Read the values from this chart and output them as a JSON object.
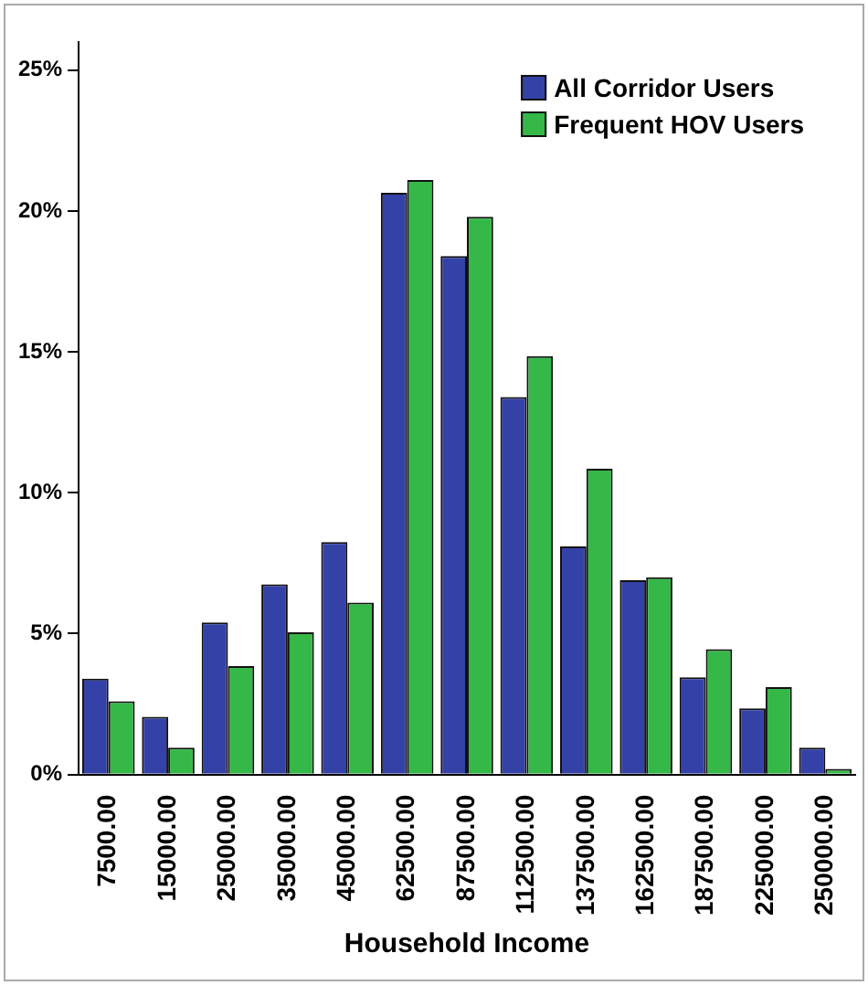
{
  "chart_data": {
    "type": "bar",
    "xlabel": "Household Income",
    "categories": [
      "7500.00",
      "15000.00",
      "25000.00",
      "35000.00",
      "45000.00",
      "62500.00",
      "87500.00",
      "112500.00",
      "137500.00",
      "162500.00",
      "187500.00",
      "225000.00",
      "250000.00"
    ],
    "series": [
      {
        "name": "All Corridor Users",
        "color": "#3442a8",
        "values": [
          3.4,
          2.05,
          5.4,
          6.75,
          8.25,
          20.65,
          18.4,
          13.4,
          8.1,
          6.9,
          3.45,
          2.35,
          0.95
        ]
      },
      {
        "name": "Frequent HOV Users",
        "color": "#35b848",
        "values": [
          2.6,
          0.95,
          3.85,
          5.05,
          6.1,
          21.1,
          19.8,
          14.85,
          10.85,
          7.0,
          4.45,
          3.1,
          0.2
        ]
      }
    ],
    "ylim": [
      0,
      26
    ],
    "yticks": [
      {
        "value": 0,
        "label": "0%"
      },
      {
        "value": 5,
        "label": "5%"
      },
      {
        "value": 10,
        "label": "10%"
      },
      {
        "value": 15,
        "label": "15%"
      },
      {
        "value": 20,
        "label": "20%"
      },
      {
        "value": 25,
        "label": "25%"
      }
    ],
    "grid": false,
    "legend": "top right"
  }
}
